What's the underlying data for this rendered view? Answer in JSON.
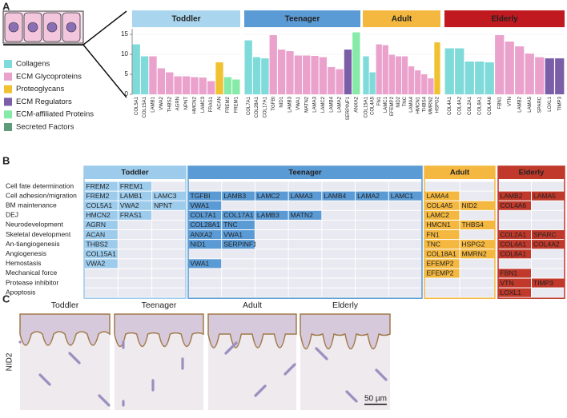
{
  "panels": [
    "A",
    "B",
    "C"
  ],
  "legend": [
    {
      "name": "Collagens",
      "color": "#7fdada"
    },
    {
      "name": "ECM Glycoproteins",
      "color": "#eaa2cc"
    },
    {
      "name": "Proteoglycans",
      "color": "#f0c232"
    },
    {
      "name": "ECM Regulators",
      "color": "#7a5ea8"
    },
    {
      "name": "ECM-affiliated Proteins",
      "color": "#86eaa8"
    },
    {
      "name": "Secreted Factors",
      "color": "#5e9c7c"
    }
  ],
  "chart_data": [
    {
      "type": "bar",
      "title": "Toddler",
      "header_color": "#a9d5ef",
      "categories": [
        "COL5A1",
        "COL15A1",
        "LAMB1",
        "VWA2",
        "THBS2",
        "AGRN",
        "NPNT",
        "HMCN2",
        "LAMC3",
        "FRAS1",
        "ACAN",
        "FREM2",
        "FREM1"
      ],
      "values": [
        12.5,
        9.5,
        9.5,
        6.5,
        5.5,
        4.5,
        4.5,
        4.3,
        4.2,
        3.3,
        8,
        4.3,
        3.7
      ],
      "colors": [
        "#7fdada",
        "#7fdada",
        "#eaa2cc",
        "#eaa2cc",
        "#eaa2cc",
        "#eaa2cc",
        "#eaa2cc",
        "#eaa2cc",
        "#eaa2cc",
        "#eaa2cc",
        "#f0c232",
        "#86eaa8",
        "#86eaa8"
      ],
      "ylim": [
        0,
        16.4
      ],
      "yticks": [
        0,
        5,
        10,
        15
      ]
    },
    {
      "type": "bar",
      "title": "Teenager",
      "header_color": "#5b9bd5",
      "categories": [
        "COL7A1",
        "COL28A1",
        "COL17A1",
        "TGFBI",
        "NID1",
        "LAMB3",
        "VWA1",
        "MATN2",
        "LAMA3",
        "LAMC2",
        "LAMB4",
        "LAMA2",
        "SERPINF1",
        "ANXA2"
      ],
      "values": [
        13.5,
        9.3,
        9.0,
        14.8,
        11.2,
        10.8,
        9.7,
        9.7,
        9.6,
        9.3,
        6.8,
        6.3,
        11.2,
        15.5
      ],
      "colors": [
        "#7fdada",
        "#7fdada",
        "#7fdada",
        "#eaa2cc",
        "#eaa2cc",
        "#eaa2cc",
        "#eaa2cc",
        "#eaa2cc",
        "#eaa2cc",
        "#eaa2cc",
        "#eaa2cc",
        "#eaa2cc",
        "#7a5ea8",
        "#86eaa8"
      ],
      "ylim": [
        0,
        16.4
      ],
      "yticks": [
        0,
        5,
        10,
        15
      ]
    },
    {
      "type": "bar",
      "title": "Adult",
      "header_color": "#f4b840",
      "categories": [
        "COL15A1",
        "COL4A5",
        "FN1",
        "LAMC1",
        "EFEMP2",
        "NID2",
        "TNC",
        "LAMA4",
        "HMCN1",
        "THBS4",
        "MMRN2",
        "HSPG2"
      ],
      "values": [
        9.5,
        5.5,
        12.5,
        12.3,
        9.9,
        9.5,
        9.5,
        7.0,
        6.0,
        5.0,
        4.0,
        13.0
      ],
      "colors": [
        "#7fdada",
        "#7fdada",
        "#eaa2cc",
        "#eaa2cc",
        "#eaa2cc",
        "#eaa2cc",
        "#eaa2cc",
        "#eaa2cc",
        "#eaa2cc",
        "#eaa2cc",
        "#eaa2cc",
        "#f0c232"
      ],
      "ylim": [
        0,
        16.4
      ],
      "yticks": [
        0,
        5,
        10,
        15
      ]
    },
    {
      "type": "bar",
      "title": "Elderly",
      "header_color": "#c0191f",
      "categories": [
        "COL4A1",
        "COL4A2",
        "COL2A1",
        "COL8A1",
        "COL4A6",
        "FBN1",
        "VTN",
        "LAMB2",
        "LAMA5",
        "SPARC",
        "LOXL1",
        "TIMP3"
      ],
      "values": [
        11.5,
        11.5,
        8.2,
        8.2,
        8.0,
        14.8,
        13.2,
        12.0,
        10.2,
        9.3,
        9.0,
        9.0
      ],
      "colors": [
        "#7fdada",
        "#7fdada",
        "#7fdada",
        "#7fdada",
        "#7fdada",
        "#eaa2cc",
        "#eaa2cc",
        "#eaa2cc",
        "#eaa2cc",
        "#eaa2cc",
        "#7a5ea8",
        "#7a5ea8"
      ],
      "ylim": [
        0,
        16.4
      ],
      "yticks": [
        0,
        5,
        10,
        15
      ]
    }
  ],
  "table": {
    "groups": [
      {
        "name": "Toddler",
        "color": "#9ccbec"
      },
      {
        "name": "Teenager",
        "color": "#5b9bd5"
      },
      {
        "name": "Adult",
        "color": "#f4b840"
      },
      {
        "name": "Elderly",
        "color": "#c0392b"
      }
    ],
    "rows": [
      {
        "label": "Cell fate determination",
        "cells": [
          [
            "FREM2",
            "FREM1"
          ],
          [],
          [],
          []
        ]
      },
      {
        "label": "Cell adhesion/migration",
        "cells": [
          [
            "FREM2",
            "LAMB1",
            "LAMC3"
          ],
          [
            "TGFBI",
            "LAMB3",
            "LAMC2",
            "LAMA3",
            "LAMB4",
            "LAMA2",
            "LAMC1"
          ],
          [
            "LAMA4"
          ],
          [
            "LAMB2",
            "LAMA5"
          ]
        ]
      },
      {
        "label": "BM maintenance",
        "cells": [
          [
            "COL5A1",
            "VWA2",
            "NPNT"
          ],
          [
            "VWA1"
          ],
          [
            "COL4A5",
            "NID2"
          ],
          [
            "COL4A6"
          ]
        ]
      },
      {
        "label": "DEJ",
        "cells": [
          [
            "HMCN2",
            "FRAS1"
          ],
          [
            "COL7A1",
            "COL17A1",
            "LAMB3",
            "MATN2"
          ],
          [
            "LAMC2"
          ],
          []
        ]
      },
      {
        "label": "Neurodevelopment",
        "cells": [
          [
            "AGRN"
          ],
          [
            "COL28A1",
            "TNC"
          ],
          [
            "HMCN1",
            "THBS4"
          ],
          []
        ]
      },
      {
        "label": "Skeletal development",
        "cells": [
          [
            "ACAN"
          ],
          [
            "ANXA2",
            "VWA1"
          ],
          [
            "FN1"
          ],
          [
            "COL2A1",
            "SPARC"
          ]
        ]
      },
      {
        "label": "An-tiangiogenesis",
        "cells": [
          [
            "THBS2"
          ],
          [
            "NID1",
            "SERPINF1"
          ],
          [
            "TNC",
            "HSPG2"
          ],
          [
            "COL4A1",
            "COL4A2"
          ]
        ]
      },
      {
        "label": "Angiogenesis",
        "cells": [
          [
            "COL15A1"
          ],
          [],
          [
            "COL18A1",
            "MMRN2"
          ],
          [
            "COL8A1"
          ]
        ]
      },
      {
        "label": "Hemostasis",
        "cells": [
          [
            "VWA2"
          ],
          [
            "VWA1"
          ],
          [
            "EFEMP2"
          ],
          []
        ]
      },
      {
        "label": "Mechanical force",
        "cells": [
          [],
          [],
          [
            "EFEMP2"
          ],
          [
            "FBN1"
          ]
        ]
      },
      {
        "label": "Protease inhibitor",
        "cells": [
          [],
          [],
          [],
          [
            "VTN",
            "TIMP3"
          ]
        ]
      },
      {
        "label": "Apoptosis",
        "cells": [
          [],
          [],
          [],
          [
            "LOXL1"
          ]
        ]
      }
    ]
  },
  "histology": {
    "stain": "NID2",
    "labels": [
      "Toddler",
      "Teenager",
      "Adult",
      "Elderly"
    ],
    "scale_bar": "50 µm"
  }
}
